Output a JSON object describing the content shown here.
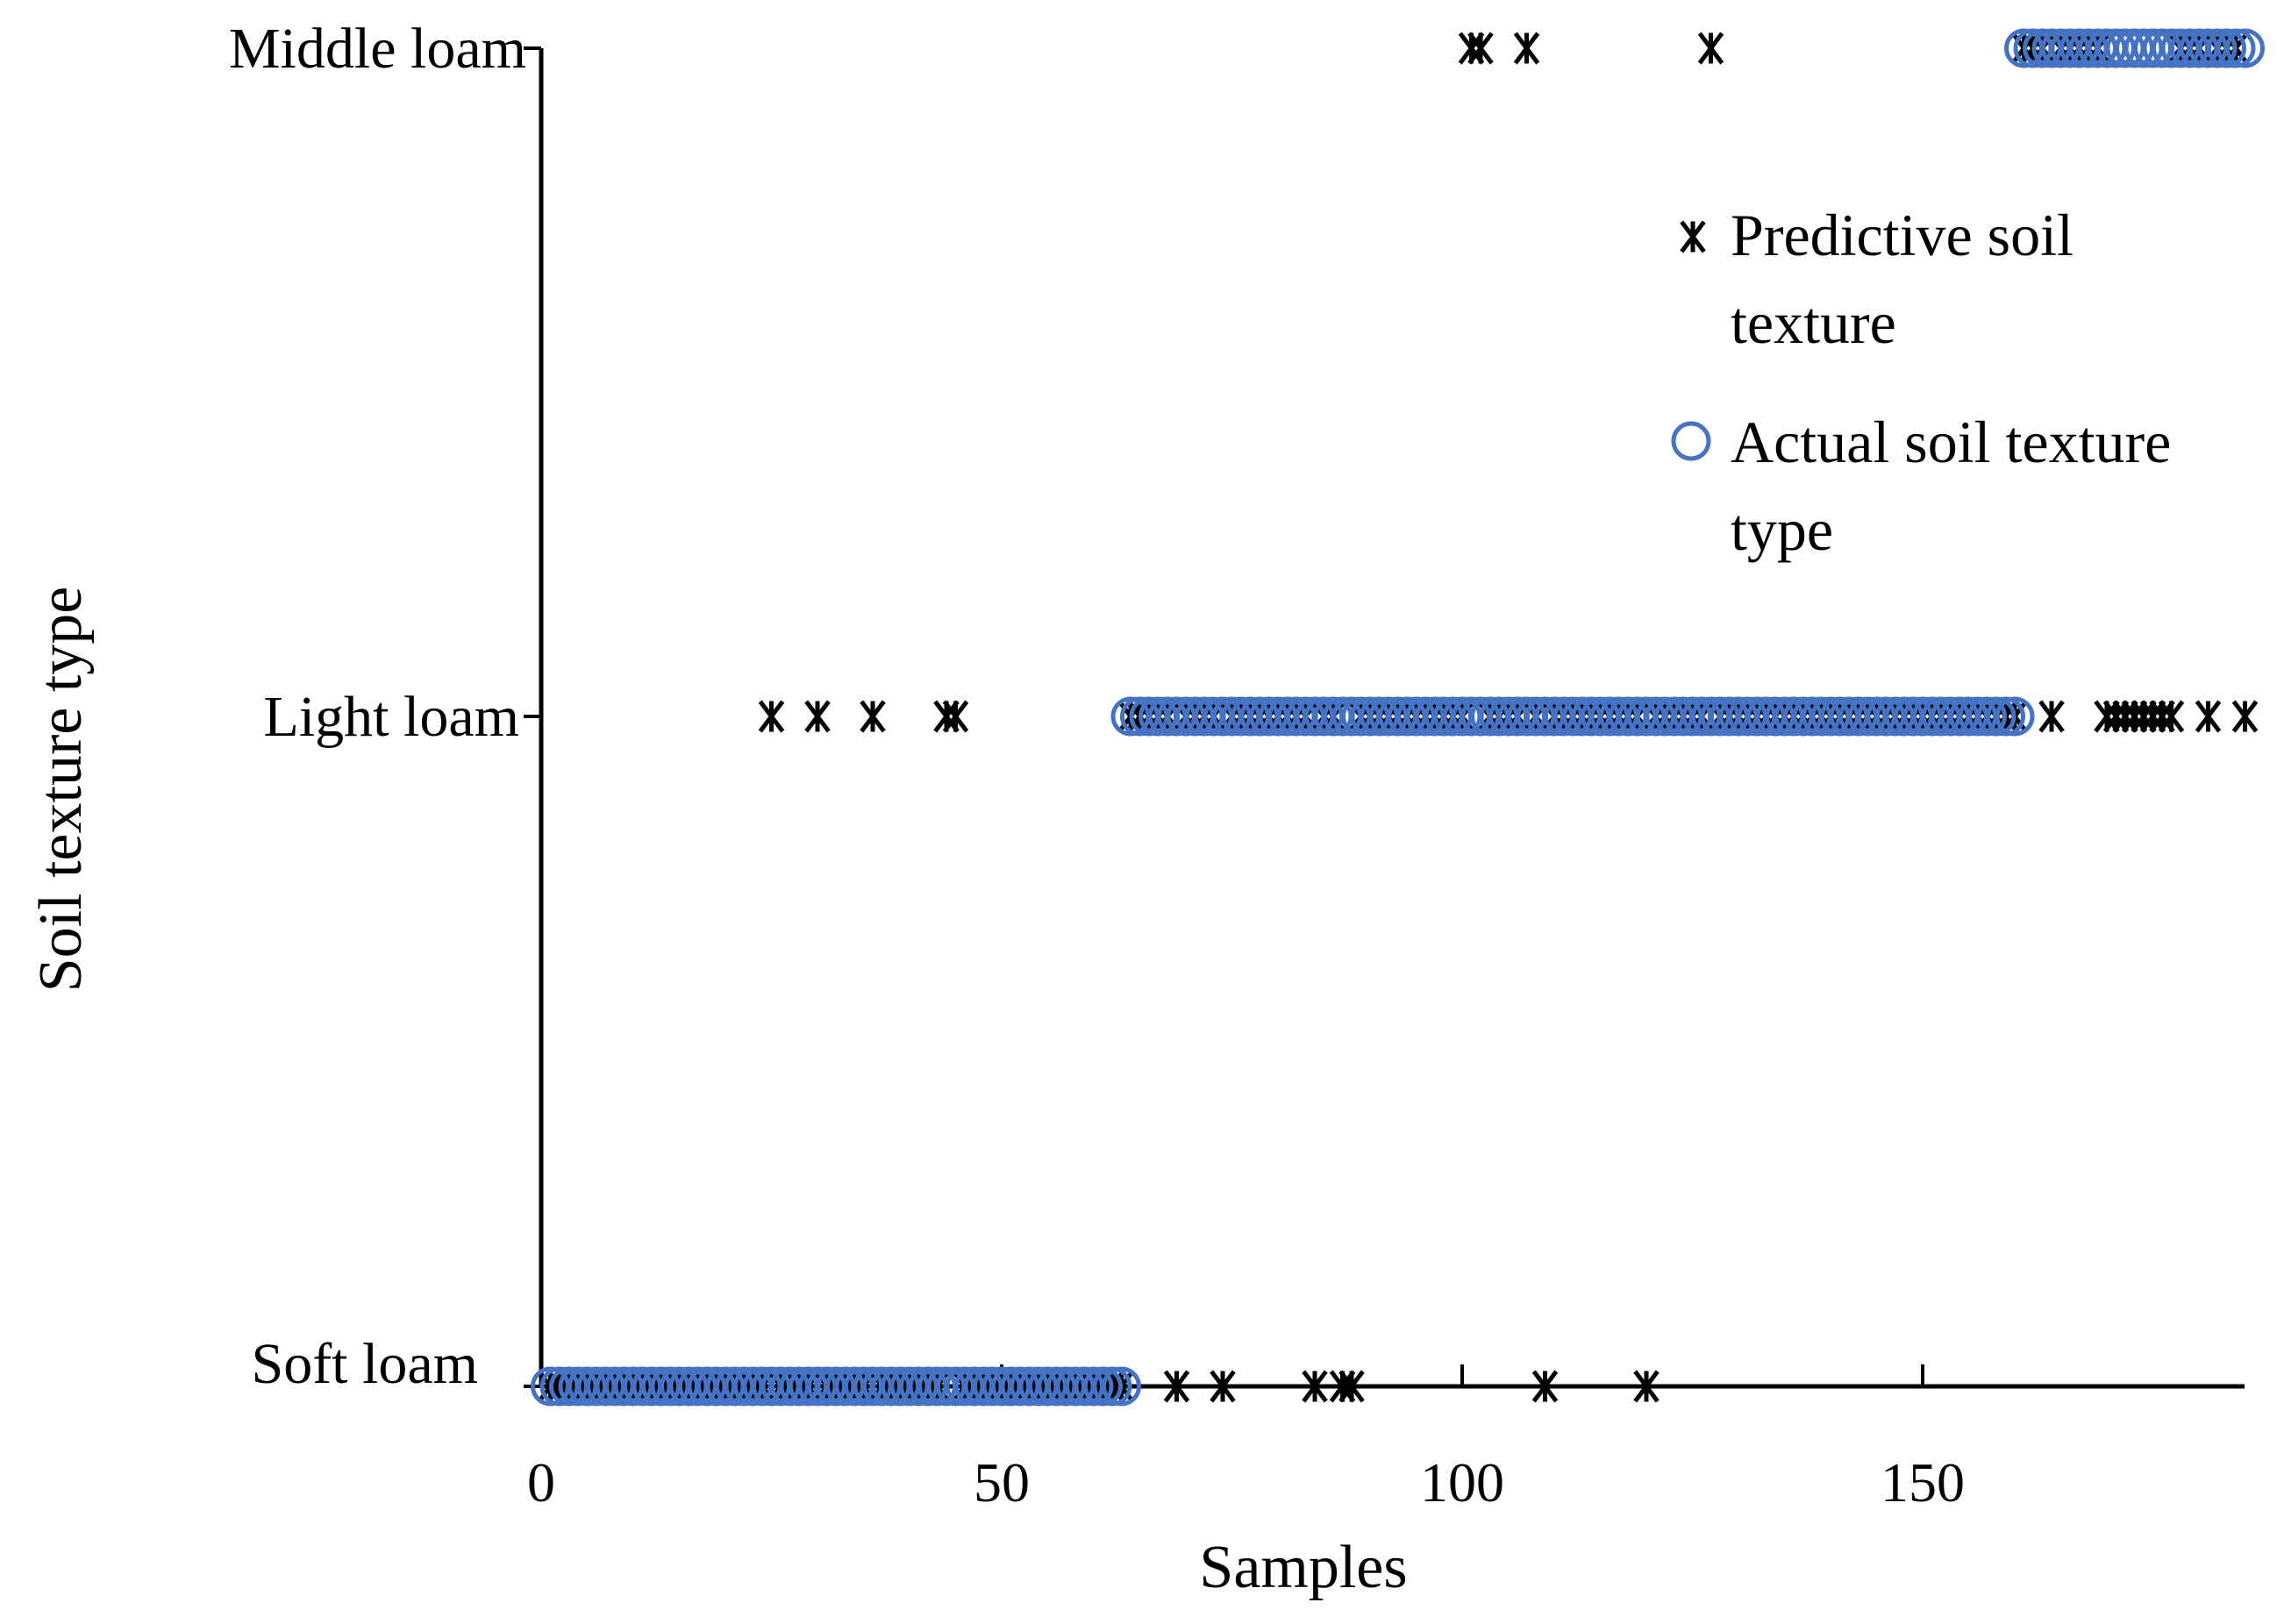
{
  "chart_data": {
    "type": "scatter",
    "title": "",
    "xlabel": "Samples",
    "ylabel": "Soil texture type",
    "xlim": [
      0,
      185
    ],
    "xticks": [
      0,
      50,
      100,
      150
    ],
    "y_categories": [
      "Soft loam",
      "Light loam",
      "Middle loam"
    ],
    "grid": false,
    "legend_position": "top-right",
    "series": [
      {
        "name": "Predictive soil texture",
        "legend_lines": [
          "Predictive soil",
          "texture"
        ],
        "marker": "asterisk",
        "color": "#000000",
        "y_category_index": [
          0,
          0,
          0,
          0,
          0,
          0,
          0,
          0,
          0,
          0,
          0,
          0,
          0,
          0,
          0,
          0,
          0,
          0,
          0,
          0,
          0,
          0,
          0,
          0,
          1,
          0,
          0,
          0,
          0,
          1,
          0,
          0,
          0,
          0,
          0,
          1,
          0,
          0,
          0,
          0,
          0,
          0,
          0,
          1,
          1,
          0,
          0,
          0,
          0,
          0,
          0,
          0,
          0,
          0,
          0,
          0,
          0,
          0,
          0,
          0,
          0,
          0,
          0,
          1,
          1,
          1,
          1,
          1,
          0,
          1,
          1,
          1,
          1,
          0,
          1,
          1,
          1,
          1,
          1,
          1,
          1,
          1,
          1,
          0,
          1,
          1,
          0,
          0,
          1,
          1,
          1,
          1,
          1,
          1,
          1,
          1,
          1,
          1,
          1,
          1,
          2,
          2,
          1,
          1,
          1,
          1,
          2,
          1,
          0,
          1,
          1,
          1,
          1,
          1,
          1,
          1,
          1,
          1,
          1,
          0,
          1,
          1,
          1,
          1,
          1,
          1,
          2,
          1,
          1,
          1,
          1,
          1,
          1,
          1,
          1,
          1,
          1,
          1,
          1,
          1,
          1,
          1,
          1,
          1,
          1,
          1,
          1,
          1,
          1,
          1,
          1,
          1,
          1,
          1,
          1,
          1,
          1,
          1,
          1,
          1,
          2,
          2,
          2,
          1,
          2,
          2,
          2,
          2,
          2,
          1,
          1,
          1,
          1,
          1,
          1,
          1,
          1,
          2,
          2,
          2,
          1,
          2,
          2,
          2,
          1
        ]
      },
      {
        "name": "Actual soil texture type",
        "legend_lines": [
          "Actual soil texture",
          "type"
        ],
        "marker": "circle",
        "color": "#4472C4",
        "y_category_index": [
          0,
          0,
          0,
          0,
          0,
          0,
          0,
          0,
          0,
          0,
          0,
          0,
          0,
          0,
          0,
          0,
          0,
          0,
          0,
          0,
          0,
          0,
          0,
          0,
          0,
          0,
          0,
          0,
          0,
          0,
          0,
          0,
          0,
          0,
          0,
          0,
          0,
          0,
          0,
          0,
          0,
          0,
          0,
          0,
          0,
          0,
          0,
          0,
          0,
          0,
          0,
          0,
          0,
          0,
          0,
          0,
          0,
          0,
          0,
          0,
          0,
          0,
          0,
          1,
          1,
          1,
          1,
          1,
          1,
          1,
          1,
          1,
          1,
          1,
          1,
          1,
          1,
          1,
          1,
          1,
          1,
          1,
          1,
          1,
          1,
          1,
          1,
          1,
          1,
          1,
          1,
          1,
          1,
          1,
          1,
          1,
          1,
          1,
          1,
          1,
          1,
          1,
          1,
          1,
          1,
          1,
          1,
          1,
          1,
          1,
          1,
          1,
          1,
          1,
          1,
          1,
          1,
          1,
          1,
          1,
          1,
          1,
          1,
          1,
          1,
          1,
          1,
          1,
          1,
          1,
          1,
          1,
          1,
          1,
          1,
          1,
          1,
          1,
          1,
          1,
          1,
          1,
          1,
          1,
          1,
          1,
          1,
          1,
          1,
          1,
          1,
          1,
          1,
          1,
          1,
          1,
          1,
          1,
          1,
          1,
          2,
          2,
          2,
          2,
          2,
          2,
          2,
          2,
          2,
          2,
          2,
          2,
          2,
          2,
          2,
          2,
          2,
          2,
          2,
          2,
          2,
          2,
          2,
          2,
          2
        ]
      }
    ]
  }
}
